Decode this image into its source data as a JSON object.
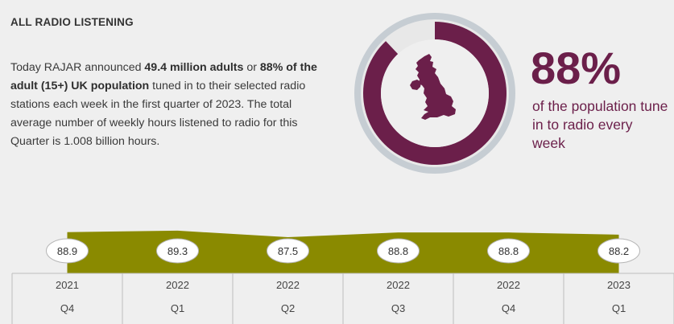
{
  "header": {
    "title": "ALL RADIO LISTENING"
  },
  "intro": {
    "part1": "Today RAJAR announced ",
    "bold1": "49.4 million adults",
    "part2": " or ",
    "bold2": "88% of the adult (15+) UK population",
    "part3": " tuned in to their selected radio stations each week in the first quarter of 2023. The total average number of weekly hours listened to radio for this Quarter is 1.008 billion hours."
  },
  "stat": {
    "percent_label": "88%",
    "percent_value": 88,
    "caption": "of the population tune in to radio every week",
    "accent_color": "#6b1f4a",
    "ring_color": "#c9d0d6",
    "icon": "uk-map-icon"
  },
  "chart_data": {
    "type": "area",
    "title": "",
    "xlabel": "",
    "ylabel": "",
    "categories": [
      [
        "2021",
        "Q4"
      ],
      [
        "2022",
        "Q1"
      ],
      [
        "2022",
        "Q2"
      ],
      [
        "2022",
        "Q3"
      ],
      [
        "2022",
        "Q4"
      ],
      [
        "2023",
        "Q1"
      ]
    ],
    "values": [
      88.9,
      89.3,
      87.5,
      88.8,
      88.8,
      88.2
    ],
    "data_labels": [
      "88.9",
      "89.3",
      "87.5",
      "88.8",
      "88.8",
      "88.2"
    ],
    "fill_color": "#8a8a00",
    "grid": false
  }
}
